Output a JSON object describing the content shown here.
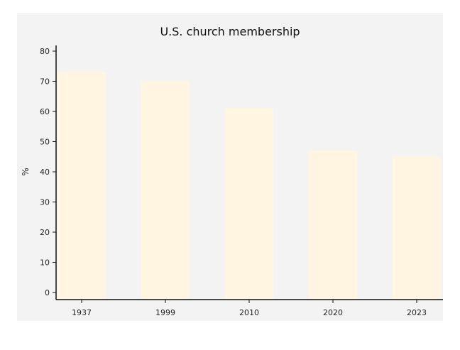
{
  "chart_data": {
    "type": "bar",
    "title": "U.S. church membership",
    "xlabel": "",
    "ylabel": "%",
    "categories": [
      "1937",
      "1999",
      "2010",
      "2020",
      "2023"
    ],
    "values": [
      73,
      70,
      61,
      47,
      45
    ],
    "ylim": [
      0,
      80
    ],
    "yticks": [
      0,
      10,
      20,
      30,
      40,
      50,
      60,
      70,
      80
    ],
    "grid": false,
    "legend": "none",
    "bar_color": "#fff5e0",
    "plot_background": "#f3f3f3",
    "axis_color": "#111111"
  }
}
